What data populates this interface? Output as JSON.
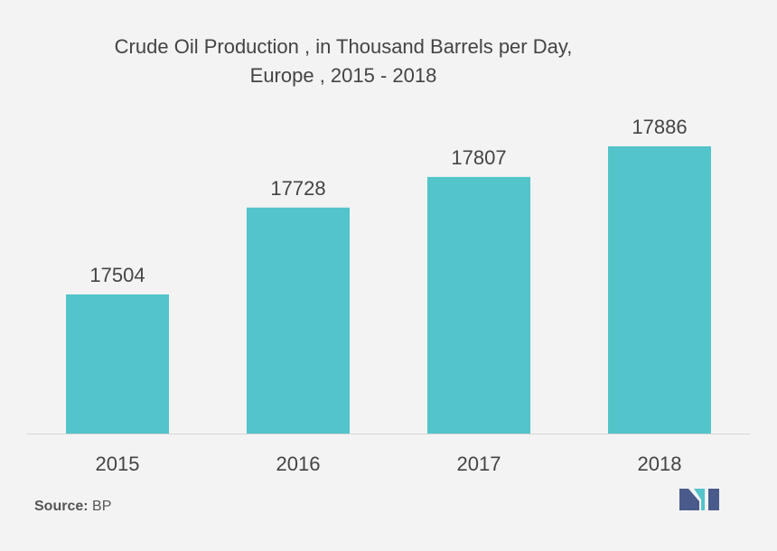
{
  "title_line1": "Crude Oil Production , in Thousand Barrels per Day,",
  "title_line2": "Europe , 2015 - 2018",
  "source_label": "Source:",
  "source_value": "BP",
  "colors": {
    "bar": "#52c4ca",
    "axis": "#d6d6d6",
    "text": "#444444",
    "logo_dark": "#4a5a8a",
    "logo_light": "#52c4ca"
  },
  "chart_data": {
    "type": "bar",
    "categories": [
      "2015",
      "2016",
      "2017",
      "2018"
    ],
    "values": [
      17504,
      17728,
      17807,
      17886
    ],
    "data_labels": [
      "17504",
      "17728",
      "17807",
      "17886"
    ],
    "title": "Crude Oil Production , in Thousand Barrels per Day, Europe , 2015 - 2018",
    "xlabel": "",
    "ylabel": "",
    "ylim": [
      17145,
      17886
    ],
    "grid": false,
    "legend": "none"
  }
}
